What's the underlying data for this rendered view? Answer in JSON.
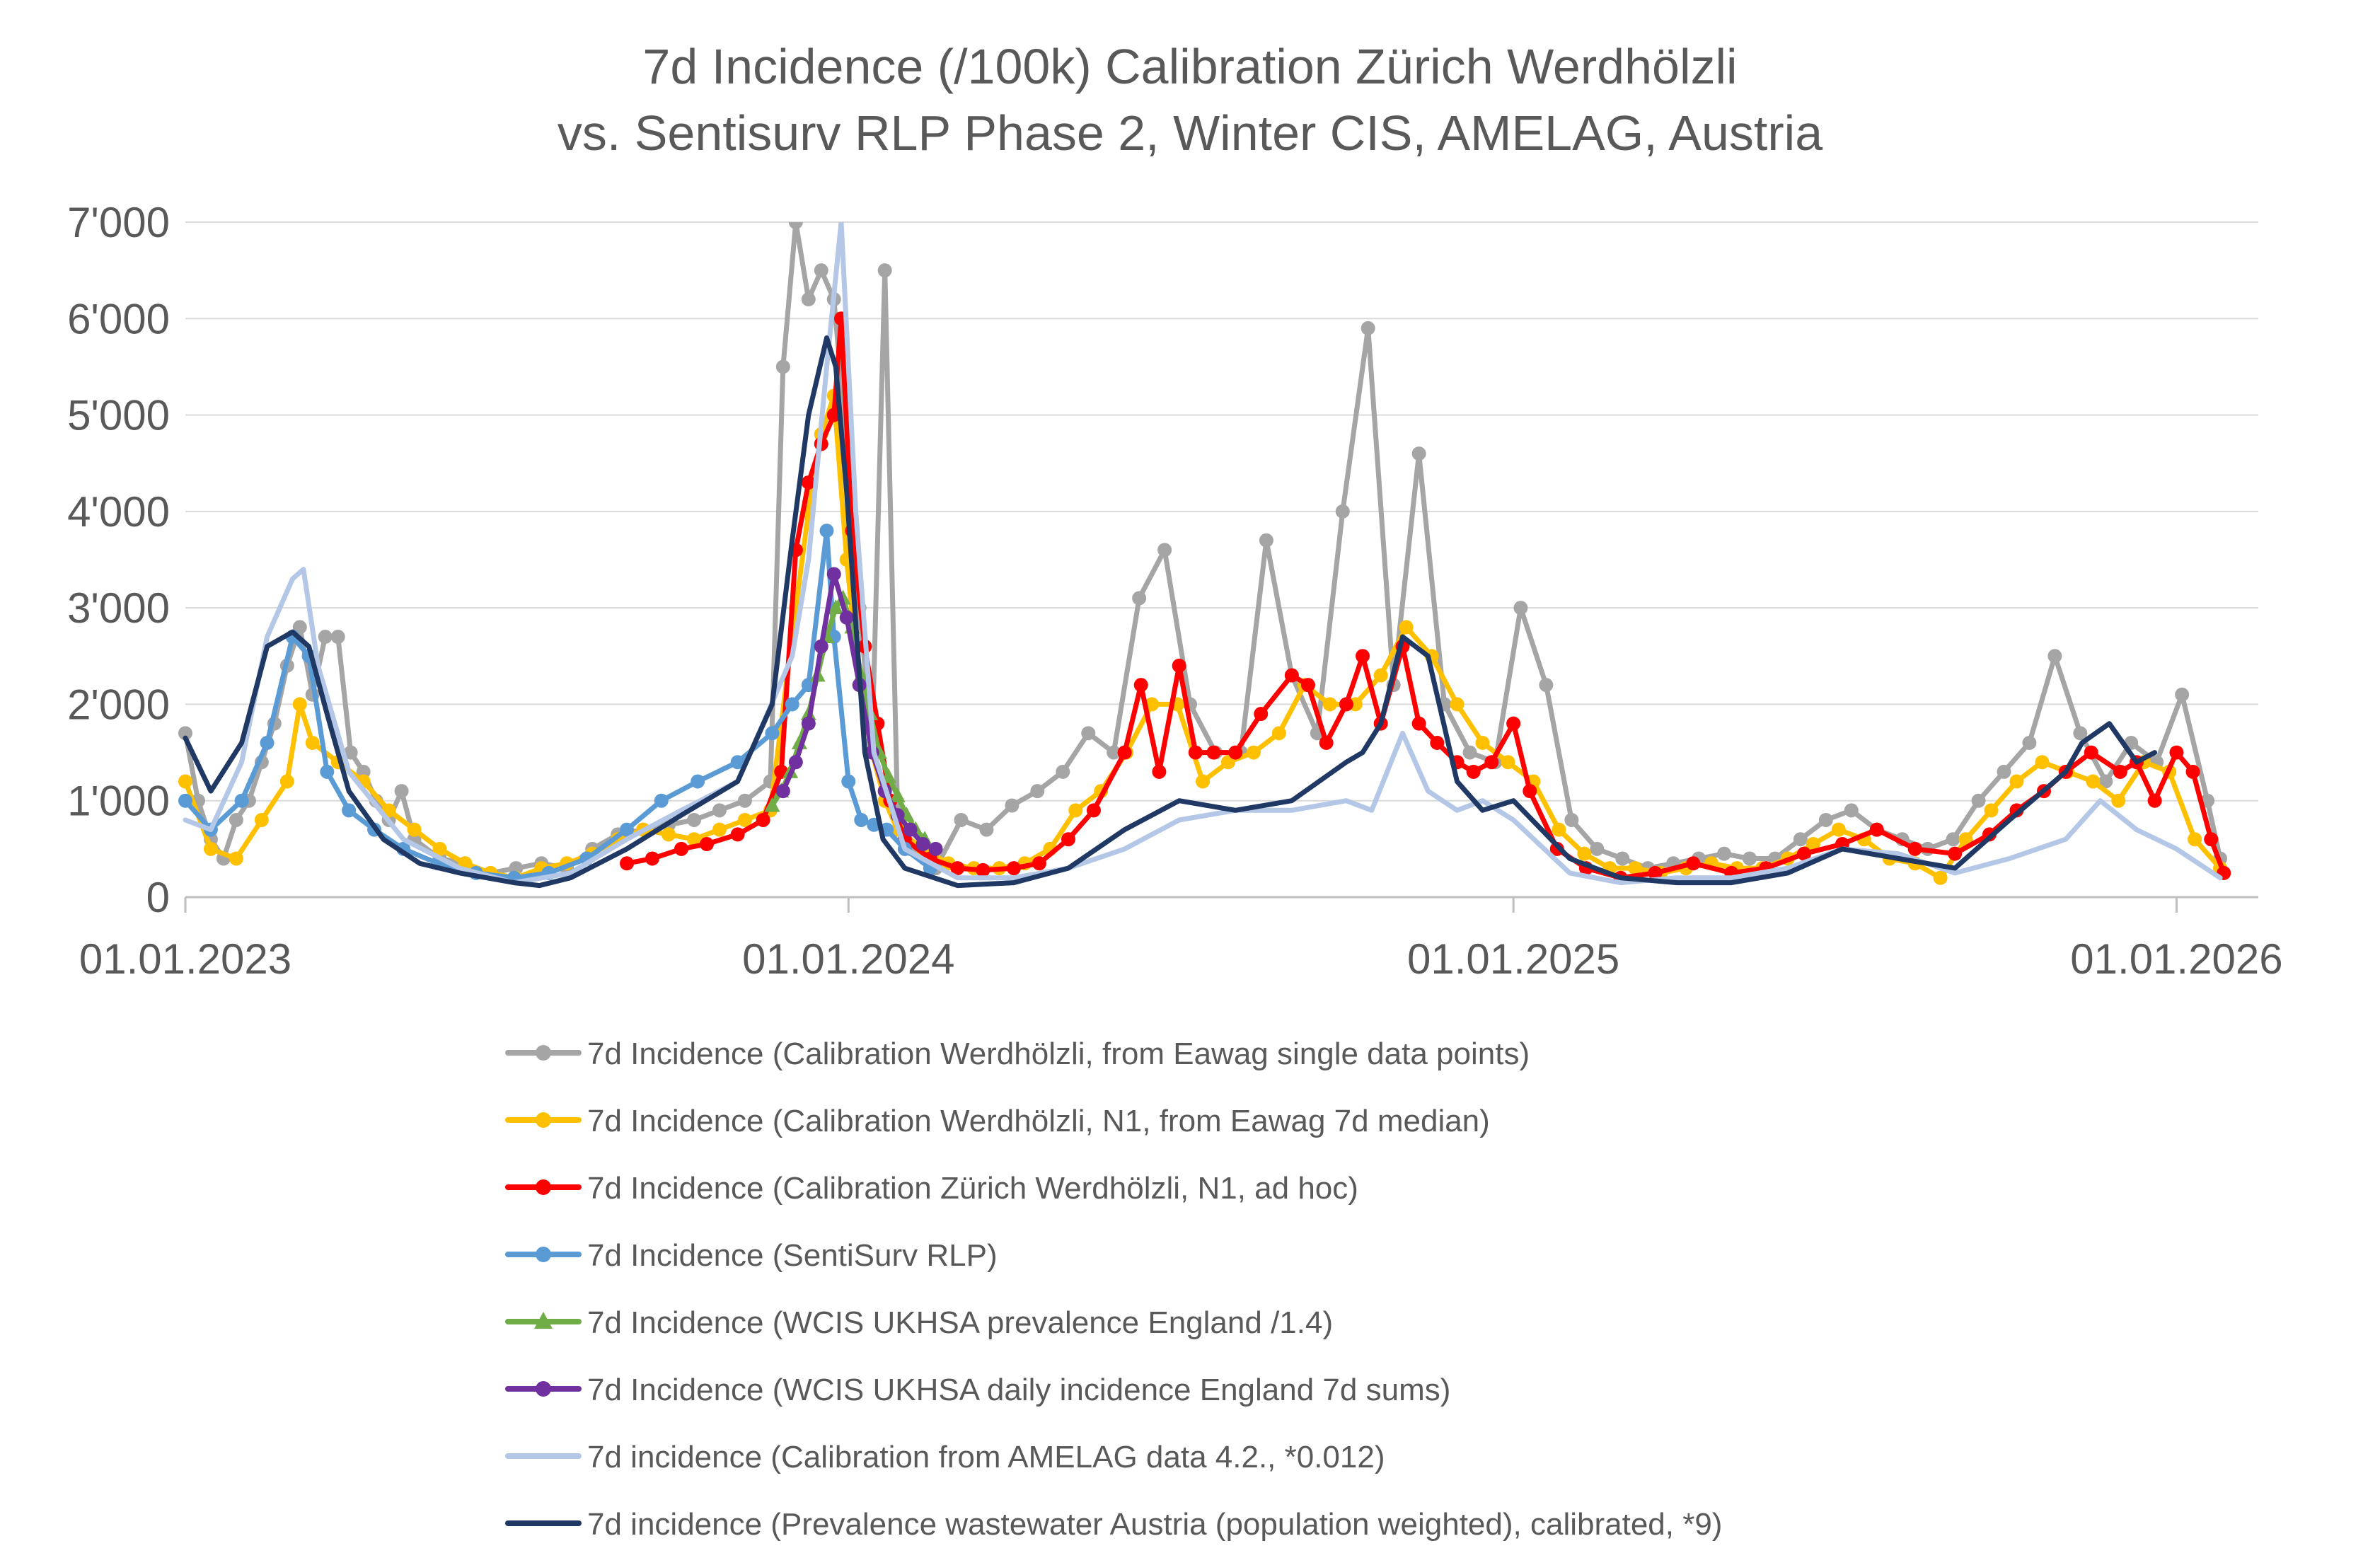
{
  "chart_data": {
    "type": "line",
    "title": "7d Incidence (/100k) Calibration Zürich Werdhölzli",
    "subtitle": "vs. Sentisurv RLP Phase 2, Winter CIS, AMELAG, Austria",
    "ylim": [
      0,
      7000
    ],
    "yticks": [
      0,
      1000,
      2000,
      3000,
      4000,
      5000,
      6000,
      7000
    ],
    "ytick_labels": [
      "0",
      "1'000",
      "2'000",
      "3'000",
      "4'000",
      "5'000",
      "6'000",
      "7'000"
    ],
    "xlim": [
      "2023-01-01",
      "2026-02-15"
    ],
    "xticks": [
      "2023-01-01",
      "2024-01-01",
      "2025-01-01",
      "2026-01-01"
    ],
    "xtick_labels": [
      "01.01.2023",
      "01.01.2024",
      "01.01.2025",
      "01.01.2026"
    ],
    "grid": "horizontal",
    "legend_position": "bottom",
    "series": [
      {
        "name": "7d Incidence (Calibration Werdhölzli, from Eawag single data points)",
        "color": "#a5a5a5",
        "marker": "circle",
        "x": [
          "2023-01-01",
          "2023-01-08",
          "2023-01-15",
          "2023-01-22",
          "2023-01-29",
          "2023-02-05",
          "2023-02-12",
          "2023-02-19",
          "2023-02-26",
          "2023-03-05",
          "2023-03-12",
          "2023-03-19",
          "2023-03-26",
          "2023-04-02",
          "2023-04-09",
          "2023-04-16",
          "2023-04-23",
          "2023-04-30",
          "2023-05-07",
          "2023-05-21",
          "2023-06-04",
          "2023-06-18",
          "2023-07-02",
          "2023-07-16",
          "2023-07-30",
          "2023-08-13",
          "2023-08-27",
          "2023-09-10",
          "2023-09-24",
          "2023-10-08",
          "2023-10-22",
          "2023-11-05",
          "2023-11-19",
          "2023-11-26",
          "2023-12-03",
          "2023-12-10",
          "2023-12-17",
          "2023-12-24",
          "2024-01-01",
          "2024-01-07",
          "2024-01-14",
          "2024-01-21",
          "2024-01-28",
          "2024-02-04",
          "2024-02-18",
          "2024-03-03",
          "2024-03-17",
          "2024-03-31",
          "2024-04-14",
          "2024-04-28",
          "2024-05-12",
          "2024-05-26",
          "2024-06-09",
          "2024-06-23",
          "2024-07-07",
          "2024-07-21",
          "2024-08-04",
          "2024-08-18",
          "2024-09-01",
          "2024-09-15",
          "2024-09-29",
          "2024-10-13",
          "2024-10-27",
          "2024-11-10",
          "2024-11-24",
          "2024-12-08",
          "2024-12-22",
          "2025-01-05",
          "2025-01-19",
          "2025-02-02",
          "2025-02-16",
          "2025-03-02",
          "2025-03-16",
          "2025-03-30",
          "2025-04-13",
          "2025-04-27",
          "2025-05-11",
          "2025-05-25",
          "2025-06-08",
          "2025-06-22",
          "2025-07-06",
          "2025-07-20",
          "2025-08-03",
          "2025-08-17",
          "2025-08-31",
          "2025-09-14",
          "2025-09-28",
          "2025-10-12",
          "2025-10-26",
          "2025-11-09",
          "2025-11-23",
          "2025-12-07",
          "2025-12-21",
          "2026-01-04",
          "2026-01-18",
          "2026-01-25"
        ],
        "y": [
          1700,
          1000,
          600,
          400,
          800,
          1000,
          1400,
          1800,
          2400,
          2800,
          2100,
          2700,
          2700,
          1500,
          1300,
          1000,
          800,
          1100,
          600,
          400,
          350,
          250,
          300,
          350,
          300,
          500,
          650,
          700,
          750,
          800,
          900,
          1000,
          1200,
          5500,
          7000,
          6200,
          6500,
          6200,
          4500,
          3000,
          1600,
          6500,
          900,
          500,
          300,
          800,
          700,
          950,
          1100,
          1300,
          1700,
          1500,
          3100,
          3600,
          2000,
          1500,
          1500,
          3700,
          2300,
          1700,
          4000,
          5900,
          2200,
          4600,
          2000,
          1500,
          1400,
          3000,
          2200,
          800,
          500,
          400,
          300,
          350,
          400,
          450,
          400,
          400,
          600,
          800,
          900,
          700,
          600,
          500,
          600,
          1000,
          1300,
          1600,
          2500,
          1700,
          1200,
          1600,
          1400,
          2100,
          1000,
          400
        ]
      },
      {
        "name": "7d Incidence (Calibration Werdhölzli, N1, from Eawag 7d median)",
        "color": "#ffc000",
        "marker": "circle",
        "x": [
          "2023-01-01",
          "2023-01-15",
          "2023-01-29",
          "2023-02-12",
          "2023-02-26",
          "2023-03-05",
          "2023-03-12",
          "2023-03-26",
          "2023-04-09",
          "2023-04-23",
          "2023-05-07",
          "2023-05-21",
          "2023-06-04",
          "2023-06-18",
          "2023-07-02",
          "2023-07-16",
          "2023-07-30",
          "2023-08-13",
          "2023-08-27",
          "2023-09-10",
          "2023-09-24",
          "2023-10-08",
          "2023-10-22",
          "2023-11-05",
          "2023-11-19",
          "2023-12-03",
          "2023-12-10",
          "2023-12-17",
          "2023-12-24",
          "2023-12-31",
          "2024-01-07",
          "2024-01-14",
          "2024-01-21",
          "2024-01-28",
          "2024-02-11",
          "2024-02-25",
          "2024-03-10",
          "2024-03-24",
          "2024-04-07",
          "2024-04-21",
          "2024-05-05",
          "2024-05-19",
          "2024-06-02",
          "2024-06-16",
          "2024-06-30",
          "2024-07-14",
          "2024-07-28",
          "2024-08-11",
          "2024-08-25",
          "2024-09-08",
          "2024-09-22",
          "2024-10-06",
          "2024-10-20",
          "2024-11-03",
          "2024-11-17",
          "2024-12-01",
          "2024-12-15",
          "2024-12-29",
          "2025-01-12",
          "2025-01-26",
          "2025-02-09",
          "2025-02-23",
          "2025-03-09",
          "2025-03-23",
          "2025-04-06",
          "2025-04-20",
          "2025-05-04",
          "2025-05-18",
          "2025-06-01",
          "2025-06-15",
          "2025-06-29",
          "2025-07-13",
          "2025-07-27",
          "2025-08-10",
          "2025-08-24",
          "2025-09-07",
          "2025-09-21",
          "2025-10-05",
          "2025-10-19",
          "2025-11-02",
          "2025-11-16",
          "2025-11-30",
          "2025-12-14",
          "2025-12-28",
          "2026-01-11",
          "2026-01-25"
        ],
        "y": [
          1200,
          500,
          400,
          800,
          1200,
          2000,
          1600,
          1400,
          1200,
          900,
          700,
          500,
          350,
          250,
          200,
          300,
          350,
          450,
          600,
          700,
          650,
          600,
          700,
          800,
          900,
          3000,
          4000,
          4800,
          5200,
          3500,
          2200,
          1500,
          1000,
          700,
          500,
          350,
          300,
          300,
          350,
          500,
          900,
          1100,
          1500,
          2000,
          2000,
          1200,
          1400,
          1500,
          1700,
          2200,
          2000,
          2000,
          2300,
          2800,
          2500,
          2000,
          1600,
          1400,
          1200,
          700,
          450,
          300,
          300,
          250,
          300,
          350,
          300,
          300,
          400,
          550,
          700,
          600,
          400,
          350,
          200,
          600,
          900,
          1200,
          1400,
          1300,
          1200,
          1000,
          1400,
          1300,
          600,
          300
        ]
      },
      {
        "name": "7d Incidence (Calibration Zürich Werdhölzli, N1, ad hoc)",
        "color": "#ff0000",
        "marker": "circle",
        "x": [
          "2023-09-01",
          "2023-09-15",
          "2023-10-01",
          "2023-10-15",
          "2023-11-01",
          "2023-11-15",
          "2023-11-25",
          "2023-12-03",
          "2023-12-10",
          "2023-12-17",
          "2023-12-24",
          "2023-12-28",
          "2024-01-03",
          "2024-01-10",
          "2024-01-17",
          "2024-01-24",
          "2024-02-01",
          "2024-02-15",
          "2024-03-01",
          "2024-03-15",
          "2024-04-01",
          "2024-04-15",
          "2024-05-01",
          "2024-05-15",
          "2024-06-01",
          "2024-06-10",
          "2024-06-20",
          "2024-07-01",
          "2024-07-10",
          "2024-07-20",
          "2024-08-01",
          "2024-08-15",
          "2024-09-01",
          "2024-09-10",
          "2024-09-20",
          "2024-10-01",
          "2024-10-10",
          "2024-10-20",
          "2024-11-01",
          "2024-11-10",
          "2024-11-20",
          "2024-12-01",
          "2024-12-10",
          "2024-12-20",
          "2025-01-01",
          "2025-01-10",
          "2025-01-25",
          "2025-02-10",
          "2025-03-01",
          "2025-03-20",
          "2025-04-10",
          "2025-05-01",
          "2025-05-20",
          "2025-06-10",
          "2025-07-01",
          "2025-07-20",
          "2025-08-10",
          "2025-09-01",
          "2025-09-20",
          "2025-10-05",
          "2025-10-20",
          "2025-11-01",
          "2025-11-15",
          "2025-12-01",
          "2025-12-10",
          "2025-12-20",
          "2026-01-01",
          "2026-01-10",
          "2026-01-20",
          "2026-01-27"
        ],
        "y": [
          350,
          400,
          500,
          550,
          650,
          800,
          1300,
          3600,
          4300,
          4700,
          5000,
          6000,
          3800,
          2600,
          1800,
          1000,
          600,
          400,
          300,
          280,
          300,
          350,
          600,
          900,
          1500,
          2200,
          1300,
          2400,
          1500,
          1500,
          1500,
          1900,
          2300,
          2200,
          1600,
          2000,
          2500,
          1800,
          2600,
          1800,
          1600,
          1400,
          1300,
          1400,
          1800,
          1100,
          500,
          300,
          200,
          250,
          350,
          250,
          300,
          450,
          550,
          700,
          500,
          450,
          650,
          900,
          1100,
          1300,
          1500,
          1300,
          1400,
          1000,
          1500,
          1300,
          600,
          250
        ]
      },
      {
        "name": "7d Incidence (SentiSurv RLP)",
        "color": "#5b9bd5",
        "marker": "circle",
        "x": [
          "2023-01-01",
          "2023-01-15",
          "2023-02-01",
          "2023-02-15",
          "2023-03-01",
          "2023-03-10",
          "2023-03-20",
          "2023-04-01",
          "2023-04-15",
          "2023-05-01",
          "2023-05-20",
          "2023-06-10",
          "2023-07-01",
          "2023-07-20",
          "2023-08-10",
          "2023-09-01",
          "2023-09-20",
          "2023-10-10",
          "2023-11-01",
          "2023-11-20",
          "2023-12-01",
          "2023-12-10",
          "2023-12-20",
          "2023-12-24",
          "2024-01-01",
          "2024-01-08",
          "2024-01-15",
          "2024-01-22",
          "2024-02-01",
          "2024-02-15"
        ],
        "y": [
          1000,
          700,
          1000,
          1600,
          2700,
          2500,
          1300,
          900,
          700,
          500,
          350,
          250,
          200,
          250,
          400,
          700,
          1000,
          1200,
          1400,
          1700,
          2000,
          2200,
          3800,
          2700,
          1200,
          800,
          750,
          700,
          500,
          300
        ]
      },
      {
        "name": "7d Incidence (WCIS UKHSA prevalence England /1.4)",
        "color": "#70ad47",
        "marker": "triangle",
        "x": [
          "2023-11-20",
          "2023-11-25",
          "2023-11-30",
          "2023-12-05",
          "2023-12-10",
          "2023-12-15",
          "2023-12-20",
          "2023-12-25",
          "2023-12-29",
          "2024-01-03",
          "2024-01-08",
          "2024-01-13",
          "2024-01-18",
          "2024-01-23",
          "2024-01-28",
          "2024-02-02",
          "2024-02-07",
          "2024-02-12"
        ],
        "y": [
          950,
          1100,
          1300,
          1600,
          1900,
          2300,
          2700,
          3000,
          3100,
          2800,
          2300,
          1900,
          1500,
          1250,
          1050,
          850,
          700,
          600
        ]
      },
      {
        "name": "7d Incidence (WCIS UKHSA daily incidence England 7d sums)",
        "color": "#7030a0",
        "marker": "circle",
        "x": [
          "2023-11-26",
          "2023-12-03",
          "2023-12-10",
          "2023-12-17",
          "2023-12-24",
          "2023-12-31",
          "2024-01-07",
          "2024-01-14",
          "2024-01-21",
          "2024-01-28",
          "2024-02-04",
          "2024-02-11",
          "2024-02-18"
        ],
        "y": [
          1100,
          1400,
          1800,
          2600,
          3350,
          2900,
          2200,
          1500,
          1100,
          850,
          700,
          550,
          500
        ]
      },
      {
        "name": "7d incidence (Calibration from AMELAG data 4.2., *0.012)",
        "color": "#b4c7e7",
        "marker": "none",
        "x": [
          "2023-01-01",
          "2023-01-15",
          "2023-02-01",
          "2023-02-15",
          "2023-03-01",
          "2023-03-07",
          "2023-03-15",
          "2023-04-01",
          "2023-05-01",
          "2023-06-01",
          "2023-07-01",
          "2023-08-01",
          "2023-09-01",
          "2023-10-01",
          "2023-11-01",
          "2023-11-15",
          "2023-12-01",
          "2023-12-10",
          "2023-12-20",
          "2023-12-28",
          "2024-01-05",
          "2024-01-15",
          "2024-02-01",
          "2024-03-01",
          "2024-04-01",
          "2024-05-01",
          "2024-06-01",
          "2024-07-01",
          "2024-08-01",
          "2024-09-01",
          "2024-10-01",
          "2024-10-15",
          "2024-11-01",
          "2024-11-15",
          "2024-12-01",
          "2024-12-15",
          "2025-01-01",
          "2025-02-01",
          "2025-03-01",
          "2025-04-01",
          "2025-05-01",
          "2025-06-01",
          "2025-07-01",
          "2025-08-01",
          "2025-09-01",
          "2025-10-01",
          "2025-11-01",
          "2025-11-20",
          "2025-12-10",
          "2026-01-01",
          "2026-01-25"
        ],
        "y": [
          800,
          700,
          1400,
          2700,
          3300,
          3400,
          2400,
          1300,
          600,
          300,
          150,
          250,
          600,
          900,
          1200,
          1800,
          2500,
          3500,
          5500,
          7000,
          4000,
          1500,
          500,
          200,
          200,
          300,
          500,
          800,
          900,
          900,
          1000,
          900,
          1700,
          1100,
          900,
          1000,
          800,
          250,
          150,
          200,
          200,
          300,
          500,
          450,
          250,
          400,
          600,
          1000,
          700,
          500,
          200
        ]
      },
      {
        "name": "7d incidence (Prevalence wastewater Austria (population weighted), calibrated, *9)",
        "color": "#203864",
        "marker": "none",
        "x": [
          "2023-01-01",
          "2023-01-15",
          "2023-02-01",
          "2023-02-15",
          "2023-03-01",
          "2023-03-10",
          "2023-03-20",
          "2023-04-01",
          "2023-04-20",
          "2023-05-10",
          "2023-06-01",
          "2023-07-01",
          "2023-07-15",
          "2023-08-01",
          "2023-09-01",
          "2023-10-01",
          "2023-11-01",
          "2023-11-20",
          "2023-12-01",
          "2023-12-10",
          "2023-12-20",
          "2023-12-25",
          "2023-12-31",
          "2024-01-10",
          "2024-01-20",
          "2024-02-01",
          "2024-03-01",
          "2024-04-01",
          "2024-05-01",
          "2024-06-01",
          "2024-07-01",
          "2024-08-01",
          "2024-09-01",
          "2024-10-01",
          "2024-10-10",
          "2024-10-20",
          "2024-11-01",
          "2024-11-15",
          "2024-12-01",
          "2024-12-15",
          "2025-01-01",
          "2025-02-01",
          "2025-03-01",
          "2025-04-01",
          "2025-05-01",
          "2025-06-01",
          "2025-07-01",
          "2025-08-01",
          "2025-09-01",
          "2025-10-01",
          "2025-11-01",
          "2025-11-10",
          "2025-11-25",
          "2025-12-10",
          "2025-12-20"
        ],
        "y": [
          1650,
          1100,
          1600,
          2600,
          2750,
          2600,
          1900,
          1100,
          600,
          350,
          250,
          150,
          120,
          200,
          500,
          850,
          1200,
          2000,
          3700,
          5000,
          5800,
          5500,
          4200,
          1500,
          600,
          300,
          120,
          150,
          300,
          700,
          1000,
          900,
          1000,
          1400,
          1500,
          1800,
          2700,
          2500,
          1200,
          900,
          1000,
          400,
          200,
          150,
          150,
          250,
          500,
          400,
          300,
          800,
          1300,
          1600,
          1800,
          1400,
          1500
        ]
      }
    ]
  }
}
